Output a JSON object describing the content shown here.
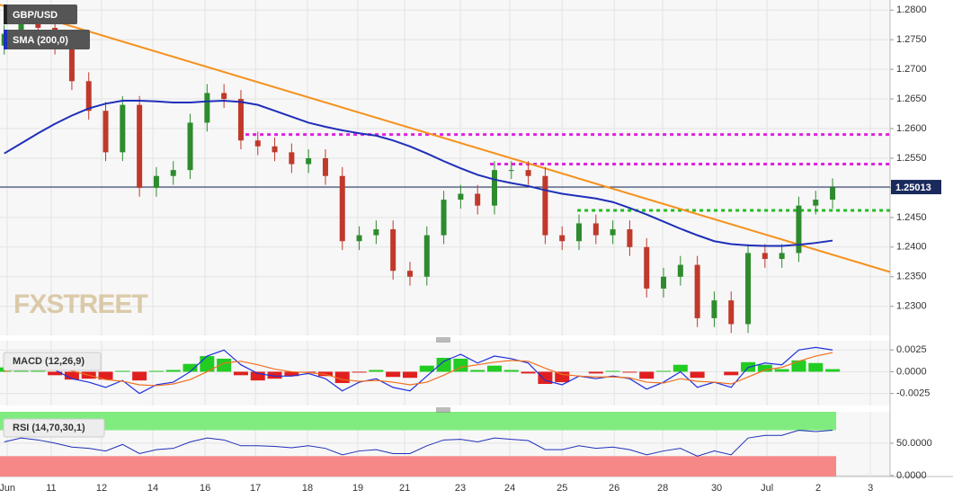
{
  "chart_data": [
    {
      "type": "candlestick",
      "title": "GBP/USD",
      "watermark": "FXSTREET",
      "up_color": "#2e8b2e",
      "down_color": "#c0392b",
      "open": [
        1.274,
        1.276,
        1.279,
        1.277,
        1.274,
        1.268,
        1.263,
        1.256,
        1.264,
        1.25,
        1.252,
        1.253,
        1.261,
        1.266,
        1.265,
        1.258,
        1.257,
        1.256,
        1.254,
        1.255,
        1.252,
        1.241,
        1.242,
        1.243,
        1.236,
        1.235,
        1.242,
        1.248,
        1.249,
        1.247,
        1.253,
        1.253,
        1.252,
        1.242,
        1.241,
        1.244,
        1.242,
        1.243,
        1.24,
        1.233,
        1.235,
        1.237,
        1.228,
        1.231,
        1.227,
        1.239,
        1.238,
        1.239,
        1.247,
        1.248
      ],
      "high": [
        1.2775,
        1.2805,
        1.2805,
        1.2785,
        1.2755,
        1.2695,
        1.2645,
        1.2655,
        1.2655,
        1.2535,
        1.2545,
        1.2625,
        1.2675,
        1.2675,
        1.2665,
        1.2595,
        1.2585,
        1.2575,
        1.2565,
        1.2565,
        1.2535,
        1.2435,
        1.2445,
        1.2445,
        1.2375,
        1.2435,
        1.2495,
        1.2505,
        1.2505,
        1.2545,
        1.2545,
        1.2545,
        1.2535,
        1.2435,
        1.2455,
        1.2455,
        1.2445,
        1.2445,
        1.2415,
        1.2365,
        1.2385,
        1.2385,
        1.2325,
        1.2325,
        1.2405,
        1.2405,
        1.2405,
        1.2485,
        1.2495,
        1.2516
      ],
      "low": [
        1.2725,
        1.2745,
        1.2755,
        1.2725,
        1.2665,
        1.2615,
        1.2545,
        1.2545,
        1.2485,
        1.2485,
        1.2505,
        1.2515,
        1.2595,
        1.2635,
        1.2565,
        1.2555,
        1.2545,
        1.2525,
        1.2525,
        1.2505,
        1.2395,
        1.2395,
        1.2405,
        1.2345,
        1.2335,
        1.2335,
        1.2405,
        1.2465,
        1.2455,
        1.2455,
        1.2515,
        1.2505,
        1.2405,
        1.2395,
        1.2395,
        1.2405,
        1.2405,
        1.2385,
        1.2315,
        1.2315,
        1.2335,
        1.2265,
        1.2265,
        1.2255,
        1.2255,
        1.2365,
        1.2365,
        1.2375,
        1.2455,
        1.2465
      ],
      "close": [
        1.276,
        1.279,
        1.277,
        1.274,
        1.268,
        1.263,
        1.256,
        1.264,
        1.25,
        1.252,
        1.253,
        1.261,
        1.266,
        1.265,
        1.258,
        1.257,
        1.256,
        1.254,
        1.255,
        1.252,
        1.241,
        1.242,
        1.243,
        1.236,
        1.235,
        1.242,
        1.248,
        1.249,
        1.247,
        1.253,
        1.253,
        1.252,
        1.242,
        1.241,
        1.244,
        1.242,
        1.243,
        1.24,
        1.233,
        1.235,
        1.237,
        1.228,
        1.231,
        1.227,
        1.239,
        1.238,
        1.239,
        1.247,
        1.248,
        1.2501
      ],
      "sma": {
        "name": "SMA (200,0)",
        "color": "#1f2fb8",
        "values": [
          1.2558,
          1.2575,
          1.2592,
          1.2608,
          1.2622,
          1.2634,
          1.2642,
          1.2647,
          1.2647,
          1.2646,
          1.2644,
          1.2644,
          1.2646,
          1.2647,
          1.2645,
          1.264,
          1.263,
          1.262,
          1.261,
          1.2603,
          1.2597,
          1.2592,
          1.2588,
          1.258,
          1.257,
          1.2558,
          1.2545,
          1.2533,
          1.2522,
          1.2514,
          1.2508,
          1.2503,
          1.2496,
          1.249,
          1.2486,
          1.2482,
          1.2476,
          1.2466,
          1.2455,
          1.2443,
          1.2431,
          1.242,
          1.241,
          1.2405,
          1.2403,
          1.2402,
          1.2402,
          1.2404,
          1.2407,
          1.2411
        ]
      },
      "trendline": {
        "color": "#f5921e",
        "x": [
          -0.25,
          52.4
        ],
        "y": [
          1.2809,
          1.2358
        ]
      },
      "levels": [
        {
          "value": 1.259,
          "from": 13.85,
          "color": "#e020e0"
        },
        {
          "value": 1.254,
          "from": 28.74,
          "color": "#e020e0"
        },
        {
          "value": 1.2462,
          "from": 33.9,
          "color": "#22bb22"
        }
      ],
      "last_price": 1.25013,
      "last_price_color": "#1a2a5c",
      "ylim": [
        1.2251,
        1.2817
      ],
      "yticks": [
        {
          "value": 1.23,
          "label": "1.2300"
        },
        {
          "value": 1.235,
          "label": "1.2350"
        },
        {
          "value": 1.24,
          "label": "1.2400"
        },
        {
          "value": 1.245,
          "label": "1.2450"
        },
        {
          "value": 1.25,
          "label": "1.2500"
        },
        {
          "value": 1.255,
          "label": "1.2550"
        },
        {
          "value": 1.26,
          "label": "1.2600"
        },
        {
          "value": 1.265,
          "label": "1.2650"
        },
        {
          "value": 1.27,
          "label": "1.2700"
        },
        {
          "value": 1.275,
          "label": "1.2750"
        },
        {
          "value": 1.28,
          "label": "1.2800"
        }
      ],
      "xlim": [
        -0.25,
        52.4
      ],
      "xticks": [
        {
          "value": 0.18,
          "label": "Jun"
        },
        {
          "value": 2.78,
          "label": "11"
        },
        {
          "value": 5.76,
          "label": "12"
        },
        {
          "value": 8.79,
          "label": "14"
        },
        {
          "value": 11.88,
          "label": "16"
        },
        {
          "value": 14.86,
          "label": "17"
        },
        {
          "value": 17.94,
          "label": "18"
        },
        {
          "value": 20.92,
          "label": "19"
        },
        {
          "value": 23.69,
          "label": "21"
        },
        {
          "value": 26.98,
          "label": "23"
        },
        {
          "value": 29.91,
          "label": "24"
        },
        {
          "value": 33.0,
          "label": "25"
        },
        {
          "value": 36.08,
          "label": "26"
        },
        {
          "value": 38.95,
          "label": "28"
        },
        {
          "value": 42.14,
          "label": "30"
        },
        {
          "value": 45.12,
          "label": "Jul"
        },
        {
          "value": 48.15,
          "label": "2"
        },
        {
          "value": 51.24,
          "label": "3"
        }
      ],
      "grid": true
    },
    {
      "type": "macd",
      "title": "MACD (12,26,9)",
      "series": [
        {
          "name": "MACD",
          "color": "#1f2fdd",
          "values": [
            0.0005,
            0.0012,
            0.001,
            0.0002,
            -0.0008,
            -0.0012,
            -0.0018,
            -0.001,
            -0.0025,
            -0.0015,
            -0.0012,
            0.0,
            0.0018,
            0.0025,
            0.0008,
            -0.0002,
            -0.0005,
            -0.0005,
            -0.0002,
            -0.0008,
            -0.0022,
            -0.0012,
            -0.0008,
            -0.0018,
            -0.0022,
            -0.0005,
            0.0012,
            0.002,
            0.001,
            0.0018,
            0.0015,
            0.001,
            -0.001,
            -0.0015,
            -0.0005,
            -0.0008,
            -0.0005,
            -0.0008,
            -0.002,
            -0.0012,
            0.0,
            -0.0018,
            -0.0012,
            -0.0018,
            0.0005,
            0.001,
            0.0008,
            0.0025,
            0.0028,
            0.0025
          ]
        },
        {
          "name": "Signal",
          "color": "#f07020",
          "values": [
            0.0,
            0.0004,
            0.0007,
            0.0006,
            0.0001,
            -0.0004,
            -0.0009,
            -0.0011,
            -0.0015,
            -0.0016,
            -0.0014,
            -0.0009,
            0.0,
            0.001,
            0.0012,
            0.0008,
            0.0003,
            0.0,
            -0.0001,
            -0.0003,
            -0.0009,
            -0.0011,
            -0.001,
            -0.0012,
            -0.0015,
            -0.0012,
            -0.0004,
            0.0005,
            0.0008,
            0.0011,
            0.0013,
            0.0012,
            0.0004,
            -0.0003,
            -0.0005,
            -0.0006,
            -0.0006,
            -0.0007,
            -0.0012,
            -0.0013,
            -0.0008,
            -0.0011,
            -0.0012,
            -0.0014,
            -0.0006,
            0.0002,
            0.0005,
            0.0012,
            0.0018,
            0.0022
          ]
        }
      ],
      "histogram": [
        0.0005,
        0.0008,
        0.0003,
        -0.0004,
        -0.0009,
        -0.0008,
        -0.0009,
        0.0001,
        -0.001,
        0.0001,
        0.0002,
        0.0009,
        0.0018,
        0.0015,
        -0.0004,
        -0.001,
        -0.0008,
        -0.0005,
        -0.0001,
        -0.0005,
        -0.0013,
        -0.0001,
        0.0002,
        -0.0006,
        -0.0007,
        0.0007,
        0.0016,
        0.0015,
        0.0002,
        0.0007,
        0.0002,
        -0.0002,
        -0.0014,
        -0.0012,
        0.0,
        -0.0002,
        0.0001,
        -0.0001,
        -0.0008,
        0.0001,
        0.0008,
        -0.0007,
        0.0,
        -0.0004,
        0.0011,
        0.0008,
        0.0003,
        0.0013,
        0.001,
        0.0003
      ],
      "positive_color": "#22cc22",
      "negative_color": "#e0201f",
      "ylim": [
        -0.00388,
        0.00356
      ],
      "yticks": [
        {
          "value": -0.0025,
          "label": "-0.0025"
        },
        {
          "value": 0,
          "label": "0.0000"
        },
        {
          "value": 0.0025,
          "label": "0.0025"
        }
      ]
    },
    {
      "type": "rsi",
      "title": "RSI (14,70,30,1)",
      "color": "#1f2fb8",
      "values": [
        52,
        58,
        55,
        50,
        44,
        42,
        38,
        48,
        34,
        40,
        42,
        52,
        58,
        55,
        46,
        46,
        45,
        43,
        46,
        42,
        32,
        38,
        40,
        34,
        34,
        46,
        55,
        56,
        52,
        58,
        56,
        54,
        40,
        40,
        46,
        42,
        44,
        40,
        32,
        38,
        42,
        30,
        38,
        32,
        58,
        62,
        62,
        70,
        68,
        70
      ],
      "overbought": 70,
      "oversold": 30,
      "overbought_color": "#80ec80",
      "oversold_color": "#f78888",
      "ylim": [
        -1.5,
        98.5
      ],
      "yticks": [
        {
          "value": 0,
          "label": "0.0000"
        },
        {
          "value": 50,
          "label": "50.0000"
        }
      ]
    }
  ]
}
